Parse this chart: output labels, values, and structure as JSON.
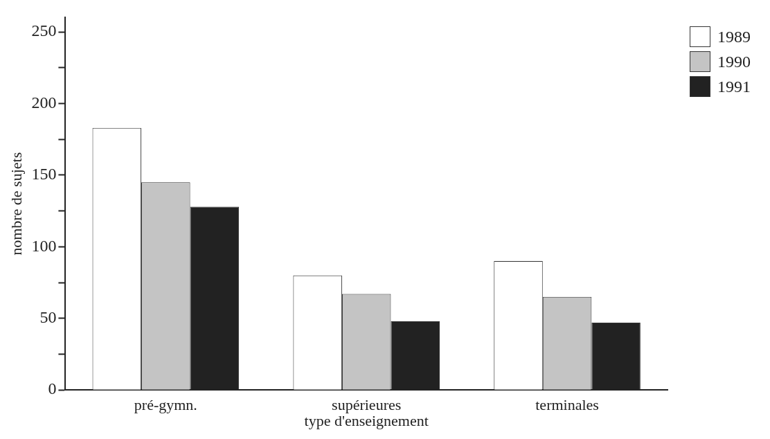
{
  "chart_data": {
    "type": "bar",
    "xlabel": "type d'enseignement",
    "ylabel": "nombre de sujets",
    "categories": [
      "pré-gymn.",
      "supérieures",
      "terminales"
    ],
    "series": [
      {
        "name": "1989",
        "color": "#ffffff",
        "values": [
          183,
          80,
          90
        ]
      },
      {
        "name": "1990",
        "color": "#c4c4c4",
        "values": [
          145,
          67,
          65
        ]
      },
      {
        "name": "1991",
        "color": "#222222",
        "values": [
          128,
          48,
          47
        ]
      }
    ],
    "ylim": [
      0,
      260
    ],
    "yticks": [
      0,
      {
        "value": 25,
        "label": null
      },
      50,
      {
        "value": 75,
        "label": null
      },
      100,
      {
        "value": 125,
        "label": null
      },
      150,
      {
        "value": 175,
        "label": null
      },
      200,
      {
        "value": 225,
        "label": null
      },
      250
    ],
    "grid": false,
    "legend": "top right"
  }
}
